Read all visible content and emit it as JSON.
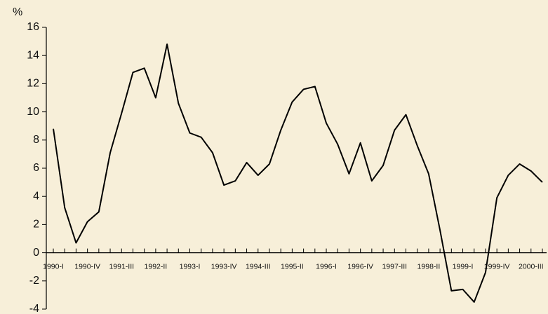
{
  "chart_data": {
    "type": "line",
    "y_label": "%",
    "categories": [
      "1990-I",
      null,
      null,
      "1990-IV",
      null,
      null,
      "1991-III",
      null,
      null,
      "1992-II",
      null,
      null,
      "1993-I",
      null,
      null,
      "1993-IV",
      null,
      null,
      "1994-III",
      null,
      null,
      "1995-II",
      null,
      null,
      "1996-I",
      null,
      null,
      "1996-IV",
      null,
      null,
      "1997-III",
      null,
      null,
      "1998-II",
      null,
      null,
      "1999-I",
      null,
      null,
      "1999-IV",
      null,
      null,
      "2000-III",
      null
    ],
    "series": [
      {
        "color": "#000000",
        "values": [
          8.8,
          3.2,
          0.7,
          2.2,
          2.9,
          7.1,
          9.9,
          12.8,
          13.1,
          11.0,
          14.8,
          10.6,
          8.5,
          8.2,
          7.1,
          4.8,
          5.1,
          6.4,
          5.5,
          6.3,
          8.7,
          10.7,
          11.6,
          11.8,
          9.2,
          7.7,
          5.6,
          7.8,
          5.1,
          6.2,
          8.7,
          9.8,
          7.6,
          5.6,
          1.6,
          -2.7,
          -2.6,
          -3.5,
          -1.4,
          3.9,
          5.5,
          6.3,
          5.8,
          5.0
        ]
      }
    ],
    "ylim": [
      -4,
      16
    ],
    "yticks": [
      -4,
      -2,
      0,
      2,
      4,
      6,
      8,
      10,
      12,
      14,
      16
    ]
  }
}
